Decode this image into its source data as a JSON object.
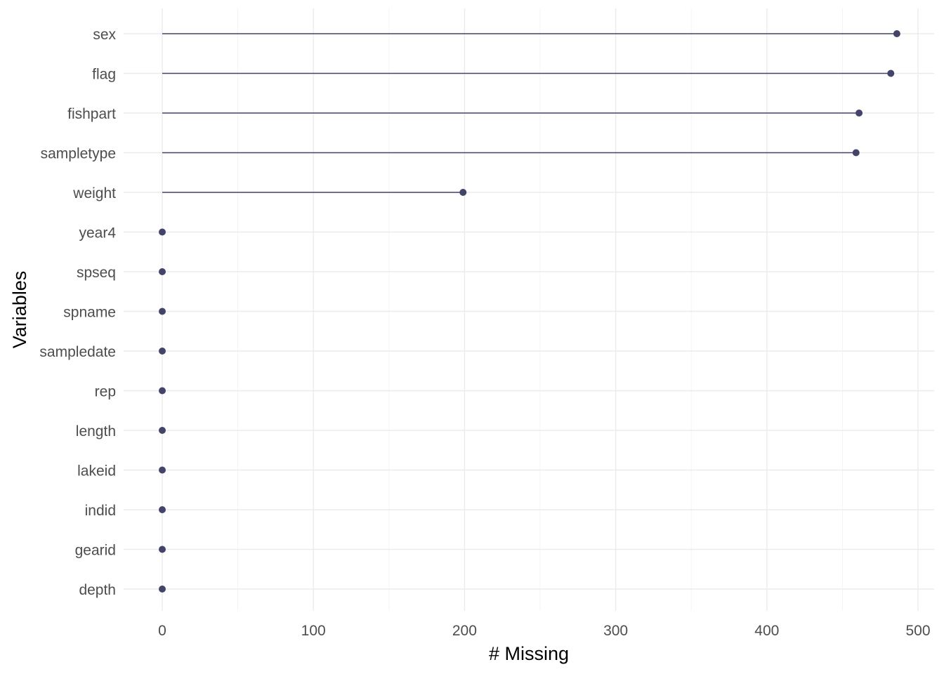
{
  "chart_data": {
    "type": "lollipop",
    "xlabel": "# Missing",
    "ylabel": "Variables",
    "xlim": [
      -25,
      510
    ],
    "x_ticks": [
      0,
      100,
      200,
      300,
      400,
      500
    ],
    "x_tick_labels": [
      "0",
      "100",
      "200",
      "300",
      "400",
      "500"
    ],
    "x_minor_ticks": [
      50,
      150,
      250,
      350,
      450
    ],
    "grid": true,
    "legend": "none",
    "color": "#44446b",
    "categories": [
      "sex",
      "flag",
      "fishpart",
      "sampletype",
      "weight",
      "year4",
      "spseq",
      "spname",
      "sampledate",
      "rep",
      "length",
      "lakeid",
      "indid",
      "gearid",
      "depth"
    ],
    "values": [
      486,
      482,
      461,
      459,
      199,
      0,
      0,
      0,
      0,
      0,
      0,
      0,
      0,
      0,
      0
    ]
  }
}
